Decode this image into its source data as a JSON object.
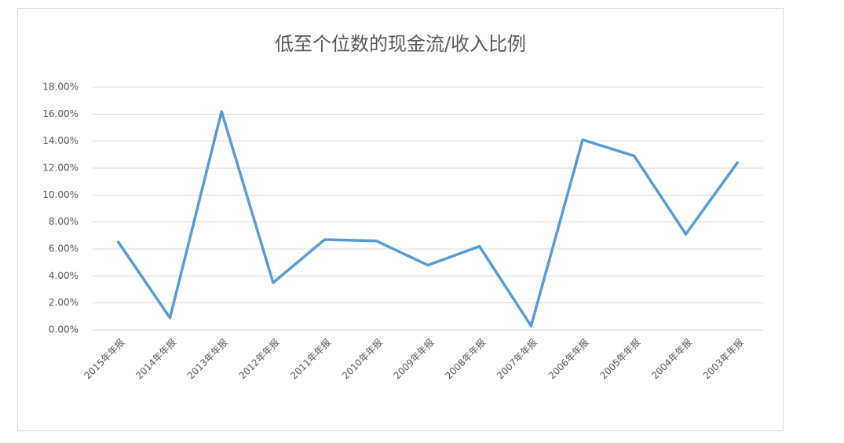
{
  "chart_data": {
    "type": "line",
    "title": "低至个位数的现金流/收入比例",
    "categories": [
      "2015年年报",
      "2014年年报",
      "2013年年报",
      "2012年年报",
      "2011年年报",
      "2010年年报",
      "2009年年报",
      "2008年年报",
      "2007年年报",
      "2006年年报",
      "2005年年报",
      "2004年年报",
      "2003年年报"
    ],
    "values": [
      6.5,
      0.9,
      16.2,
      3.5,
      6.7,
      6.6,
      4.8,
      6.2,
      0.3,
      14.1,
      12.9,
      7.1,
      12.4
    ],
    "color": "#5b9bd5",
    "ylim": [
      0,
      18
    ],
    "yticks": [
      {
        "value": 0,
        "label": "0.00%"
      },
      {
        "value": 2,
        "label": "2.00%"
      },
      {
        "value": 4,
        "label": "4.00%"
      },
      {
        "value": 6,
        "label": "6.00%"
      },
      {
        "value": 8,
        "label": "8.00%"
      },
      {
        "value": 10,
        "label": "10.00%"
      },
      {
        "value": 12,
        "label": "12.00%"
      },
      {
        "value": 14,
        "label": "14.00%"
      },
      {
        "value": 16,
        "label": "16.00%"
      },
      {
        "value": 18,
        "label": "18.00%"
      }
    ],
    "grid": true
  }
}
